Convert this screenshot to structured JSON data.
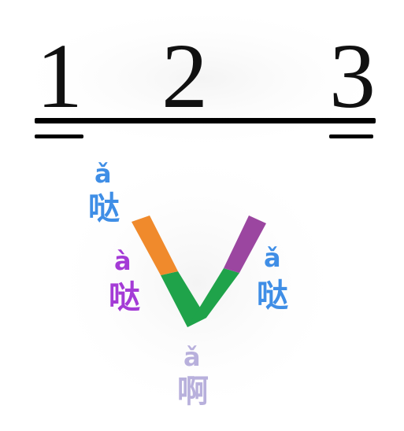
{
  "numbers": [
    "1",
    "2",
    "3"
  ],
  "labels": {
    "first": {
      "pinyin": "ǎ",
      "hanzi": "哒",
      "color": "#3f8ee6"
    },
    "second": {
      "pinyin": "à",
      "hanzi": "哒",
      "color": "#a43bd6"
    },
    "third": {
      "pinyin": "ǎ",
      "hanzi": "哒",
      "color": "#3f8ee6"
    },
    "bottom": {
      "pinyin": "ǎ",
      "hanzi": "啊",
      "color": "#b8b0dc"
    }
  },
  "colors": {
    "rule": "#000000",
    "v_left_top": "#f08a2c",
    "v_right_top": "#9b46a0",
    "v_body": "#1fa34a"
  }
}
